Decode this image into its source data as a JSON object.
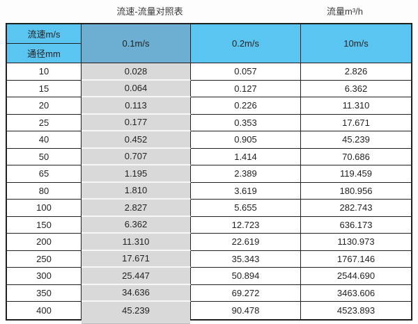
{
  "page": {
    "title": "流速-流量对照表",
    "unit_label": "流量m³/h"
  },
  "colors": {
    "header_blue": "#5bc5f2",
    "header_blue_muted": "#6cafd2",
    "shaded_column_gray": "#d9d9d9",
    "grid_line": "#1f1f1f",
    "shaded_separator": "#f7f7f7"
  },
  "chart_data": {
    "type": "table",
    "title": "流速-流量对照表",
    "unit_label": "流量m³/h",
    "corner_header": {
      "top": "流速m/s",
      "bottom": "通径mm"
    },
    "velocity_columns": [
      "0.1m/s",
      "0.2m/s",
      "10m/s"
    ],
    "rows": [
      {
        "diameter_mm": "10",
        "values": [
          "0.028",
          "0.057",
          "2.826"
        ]
      },
      {
        "diameter_mm": "15",
        "values": [
          "0.064",
          "0.127",
          "6.362"
        ]
      },
      {
        "diameter_mm": "20",
        "values": [
          "0.113",
          "0.226",
          "11.310"
        ]
      },
      {
        "diameter_mm": "25",
        "values": [
          "0.177",
          "0.353",
          "17.671"
        ]
      },
      {
        "diameter_mm": "40",
        "values": [
          "0.452",
          "0.905",
          "45.239"
        ]
      },
      {
        "diameter_mm": "50",
        "values": [
          "0.707",
          "1.414",
          "70.686"
        ]
      },
      {
        "diameter_mm": "65",
        "values": [
          "1.195",
          "2.389",
          "119.459"
        ]
      },
      {
        "diameter_mm": "80",
        "values": [
          "1.810",
          "3.619",
          "180.956"
        ]
      },
      {
        "diameter_mm": "100",
        "values": [
          "2.827",
          "5.655",
          "282.743"
        ]
      },
      {
        "diameter_mm": "150",
        "values": [
          "6.362",
          "12.723",
          "636.173"
        ]
      },
      {
        "diameter_mm": "200",
        "values": [
          "11.310",
          "22.619",
          "1130.973"
        ]
      },
      {
        "diameter_mm": "250",
        "values": [
          "17.671",
          "35.343",
          "1767.146"
        ]
      },
      {
        "diameter_mm": "300",
        "values": [
          "25.447",
          "50.894",
          "2544.690"
        ]
      },
      {
        "diameter_mm": "350",
        "values": [
          "34.636",
          "69.272",
          "3463.606"
        ]
      },
      {
        "diameter_mm": "400",
        "values": [
          "45.239",
          "90.478",
          "4523.893"
        ]
      }
    ]
  }
}
